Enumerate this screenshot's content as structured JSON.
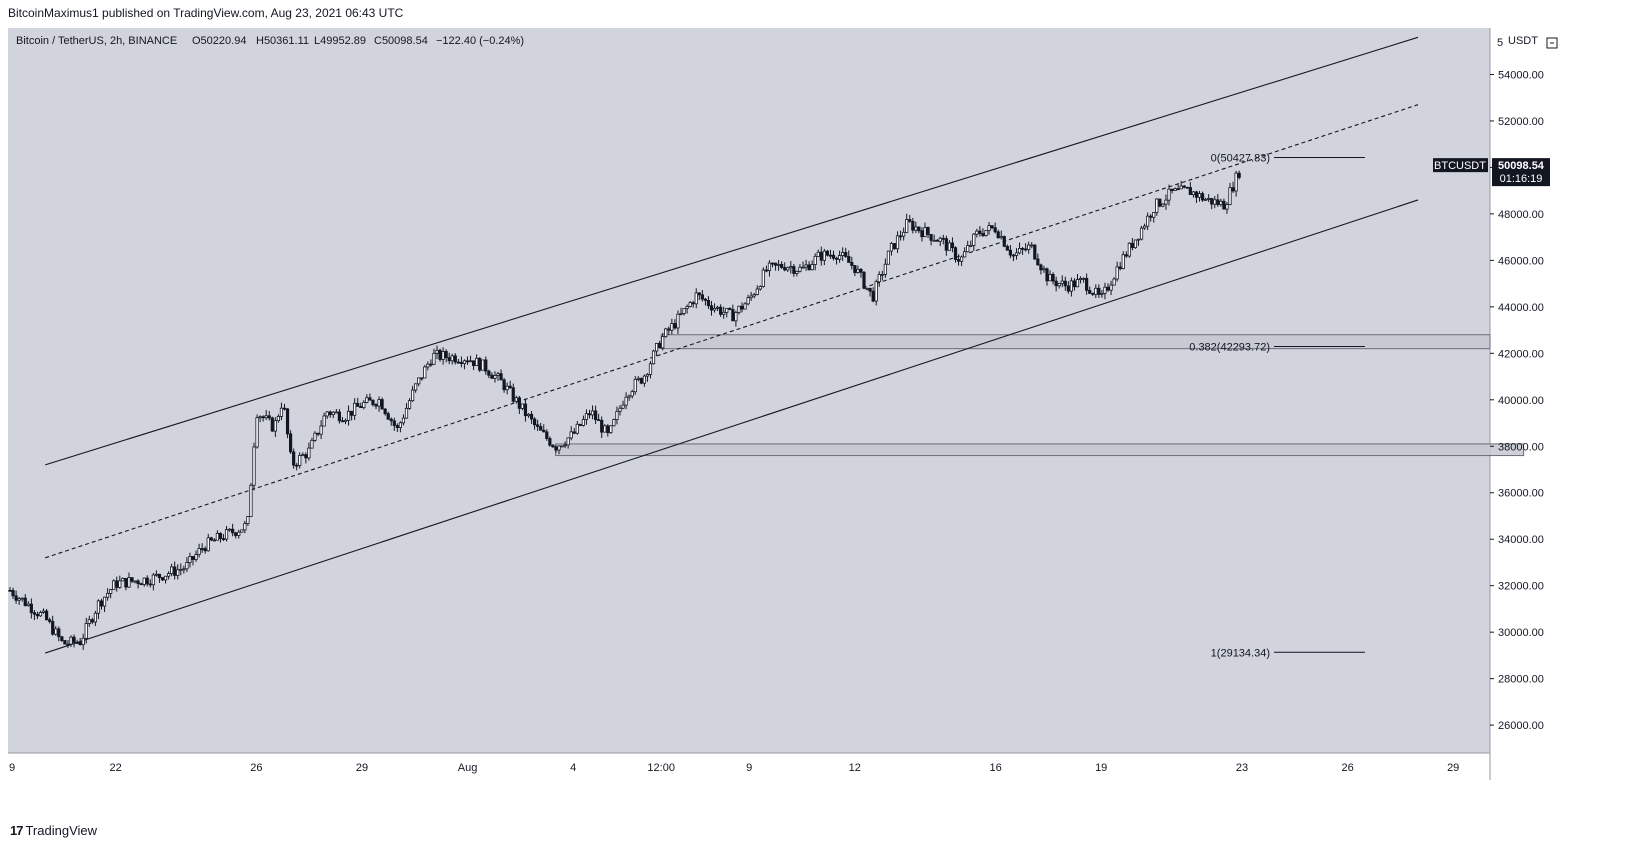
{
  "header": {
    "caption": "BitcoinMaximus1 published on TradingView.com, Aug 23, 2021 06:43 UTC"
  },
  "legend": {
    "symbol": "Bitcoin / TetherUS, 2h, BINANCE",
    "o": "O50220.94",
    "h": "H50361.11",
    "l": "L49952.89",
    "c": "C50098.54",
    "change": "−122.40 (−0.24%)"
  },
  "price_axis": {
    "unit_label": "USDT",
    "zoom_label": "5",
    "tick_labels": [
      "54000.00",
      "52000.00",
      "50000.00",
      "48000.00",
      "46000.00",
      "44000.00",
      "42000.00",
      "40000.00",
      "38000.00",
      "36000.00",
      "34000.00",
      "32000.00",
      "30000.00",
      "28000.00",
      "26000.00"
    ]
  },
  "time_axis": {
    "labels": [
      "9",
      "22",
      "26",
      "29",
      "Aug",
      "4",
      "12:00",
      "9",
      "12",
      "16",
      "19",
      "23",
      "26",
      "29"
    ]
  },
  "tags": {
    "symbol_tag": "BTCUSDT",
    "last_price": "50098.54",
    "countdown": "01:16:19"
  },
  "fib_levels": [
    {
      "label": "0(50427.83)",
      "price": 50427.83
    },
    {
      "label": "0.382(42293.72)",
      "price": 42293.72
    },
    {
      "label": "1(29134.34)",
      "price": 29134.34
    }
  ],
  "branding": {
    "logo_text": "TradingView",
    "logo_mark": "17"
  },
  "colors": {
    "chart_bg": "#d1d4dc",
    "line": "#131722",
    "zone_fill": "#c5c8d0"
  },
  "chart_data": {
    "type": "candlestick",
    "title": "Bitcoin / TetherUS, 2h, BINANCE",
    "xlabel": "",
    "ylabel": "USDT",
    "ylim": [
      24800,
      56000
    ],
    "grid": false,
    "close_path": [
      [
        "Jul 19",
        31800
      ],
      [
        "Jul 20",
        30600
      ],
      [
        "Jul 20 12:00",
        29500
      ],
      [
        "Jul 21",
        29600
      ],
      [
        "Jul 21 12:00",
        31200
      ],
      [
        "Jul 22",
        32100
      ],
      [
        "Jul 23",
        32300
      ],
      [
        "Jul 24",
        32800
      ],
      [
        "Jul 24 12:00",
        33700
      ],
      [
        "Jul 25",
        34100
      ],
      [
        "Jul 25 18:00",
        34600
      ],
      [
        "Jul 26",
        39500
      ],
      [
        "Jul 26 12:00",
        38800
      ],
      [
        "Jul 26 18:00",
        40000
      ],
      [
        "Jul 27",
        37200
      ],
      [
        "Jul 27 12:00",
        37800
      ],
      [
        "Jul 28",
        39500
      ],
      [
        "Jul 28 12:00",
        39300
      ],
      [
        "Jul 29",
        39800
      ],
      [
        "Jul 29 12:00",
        40000
      ],
      [
        "Jul 30",
        38700
      ],
      [
        "Jul 30 12:00",
        40500
      ],
      [
        "Jul 31",
        41900
      ],
      [
        "Aug 1",
        41800
      ],
      [
        "Aug 1 12:00",
        41400
      ],
      [
        "Aug 2",
        40700
      ],
      [
        "Aug 2 12:00",
        39700
      ],
      [
        "Aug 3",
        38700
      ],
      [
        "Aug 3 12:00",
        38000
      ],
      [
        "Aug 4",
        38500
      ],
      [
        "Aug 4 12:00",
        39500
      ],
      [
        "Aug 5",
        38400
      ],
      [
        "Aug 5 12:00",
        40300
      ],
      [
        "Aug 6",
        41000
      ],
      [
        "Aug 6 12:00",
        42600
      ],
      [
        "Aug 7",
        43500
      ],
      [
        "Aug 7 12:00",
        44500
      ],
      [
        "Aug 8",
        44000
      ],
      [
        "Aug 8 12:00",
        43600
      ],
      [
        "Aug 9",
        44300
      ],
      [
        "Aug 9 12:00",
        45600
      ],
      [
        "Aug 10",
        45800
      ],
      [
        "Aug 10 12:00",
        45600
      ],
      [
        "Aug 11",
        46200
      ],
      [
        "Aug 11 12:00",
        46300
      ],
      [
        "Aug 12",
        45700
      ],
      [
        "Aug 12 12:00",
        44400
      ],
      [
        "Aug 13",
        46400
      ],
      [
        "Aug 13 12:00",
        47600
      ],
      [
        "Aug 14",
        47200
      ],
      [
        "Aug 14 12:00",
        46800
      ],
      [
        "Aug 15",
        46000
      ],
      [
        "Aug 15 12:00",
        47200
      ],
      [
        "Aug 16",
        47400
      ],
      [
        "Aug 16 12:00",
        46200
      ],
      [
        "Aug 17",
        46600
      ],
      [
        "Aug 17 12:00",
        45200
      ],
      [
        "Aug 18",
        44900
      ],
      [
        "Aug 18 12:00",
        45100
      ],
      [
        "Aug 19",
        44300
      ],
      [
        "Aug 19 12:00",
        45800
      ],
      [
        "Aug 20",
        47000
      ],
      [
        "Aug 20 12:00",
        48300
      ],
      [
        "Aug 21",
        48900
      ],
      [
        "Aug 21 12:00",
        49000
      ],
      [
        "Aug 22",
        48600
      ],
      [
        "Aug 22 12:00",
        48400
      ],
      [
        "Aug 23",
        50100
      ]
    ],
    "ascending_channel": {
      "upper_line": {
        "from": [
          "Jul 20",
          37200
        ],
        "to": [
          "Aug 28",
          55600
        ]
      },
      "middle_line": {
        "from": [
          "Jul 20",
          33200
        ],
        "to": [
          "Aug 28",
          52700
        ]
      },
      "lower_line": {
        "from": [
          "Jul 20",
          29100
        ],
        "to": [
          "Aug 28",
          48600
        ]
      }
    },
    "horizontal_zones": [
      {
        "from": "Aug 6 12:00",
        "price_range": [
          42200,
          42800
        ]
      },
      {
        "from": "Aug 3 12:00",
        "to": "Aug 31",
        "price_range": [
          37600,
          38100
        ]
      }
    ],
    "fibonacci": [
      {
        "level": "0",
        "price": 50427.83
      },
      {
        "level": "0.382",
        "price": 42293.72
      },
      {
        "level": "1",
        "price": 29134.34
      }
    ],
    "last_price": 50098.54
  }
}
